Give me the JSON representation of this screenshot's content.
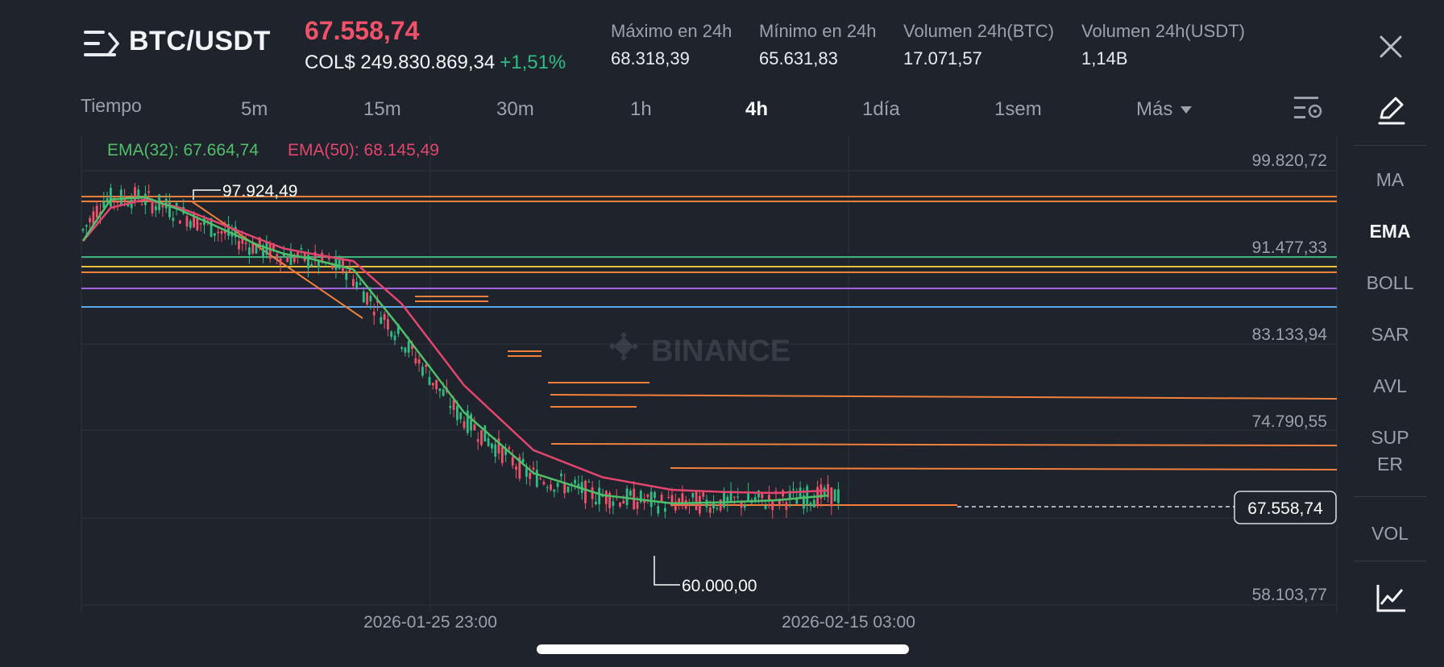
{
  "header": {
    "pair": "BTC/USDT",
    "price": "67.558,74",
    "local_price": "COL$ 249.830.869,34",
    "change": "+1,51%",
    "stats": [
      {
        "label": "Máximo en 24h",
        "value": "68.318,39"
      },
      {
        "label": "Mínimo en 24h",
        "value": "65.631,83"
      },
      {
        "label": "Volumen 24h(BTC)",
        "value": "17.071,57"
      },
      {
        "label": "Volumen 24h(USDT)",
        "value": "1,14B"
      }
    ]
  },
  "timeframes": {
    "label": "Tiempo",
    "items": [
      "5m",
      "15m",
      "30m",
      "1h",
      "4h",
      "1día",
      "1sem",
      "Más"
    ],
    "selected": "4h"
  },
  "indicators": {
    "items": [
      "MA",
      "EMA",
      "BOLL",
      "SAR",
      "AVL",
      "SUPER",
      "VOL"
    ],
    "selected": "EMA"
  },
  "chart": {
    "ema32_label": "EMA(32): 67.664,74",
    "ema50_label": "EMA(50): 68.145,49",
    "ema32_color": "#4fbf6a",
    "ema50_color": "#e2466f",
    "up_color": "#2ebd85",
    "down_color": "#f0526a",
    "watermark": "BINANCE",
    "high_label": "97.924,49",
    "low_label": "60.000,00",
    "current_price_label": "67.558,74",
    "y_ticks": [
      "99.820,72",
      "91.477,33",
      "83.133,94",
      "74.790,55",
      "58.103,77"
    ],
    "x_ticks": [
      "2026-01-25 23:00",
      "2026-02-15 03:00"
    ]
  },
  "chart_data": {
    "type": "line",
    "title": "",
    "ylim": [
      58103.77,
      99820.72
    ],
    "series": [
      {
        "name": "EMA(32)",
        "x": [
          0,
          8,
          18,
          28,
          38,
          50,
          58,
          66,
          78,
          92,
          110,
          130,
          150,
          170,
          185,
          200,
          215
        ],
        "values": [
          92050,
          96000,
          96200,
          95000,
          93500,
          91700,
          90800,
          90300,
          89300,
          83500,
          75600,
          69800,
          67700,
          66900,
          67000,
          67200,
          67660
        ]
      },
      {
        "name": "EMA(50)",
        "x": [
          0,
          8,
          18,
          28,
          38,
          50,
          58,
          66,
          78,
          92,
          110,
          130,
          150,
          170,
          185,
          200,
          215
        ],
        "values": [
          92000,
          95200,
          96000,
          95200,
          93900,
          92300,
          91300,
          90800,
          90100,
          86000,
          78200,
          72000,
          69400,
          68200,
          68000,
          67900,
          68145
        ]
      }
    ],
    "annotations": [
      {
        "label": "97.924,49",
        "value": 97924.49
      },
      {
        "label": "60.000,00",
        "value": 60000.0
      },
      {
        "label": "67.558,74",
        "value": 67558.74
      }
    ],
    "y_ticks": [
      99820.72,
      91477.33,
      83133.94,
      74790.55,
      58103.77
    ],
    "x_ticks": [
      "2026-01-25 23:00",
      "2026-02-15 03:00"
    ]
  }
}
